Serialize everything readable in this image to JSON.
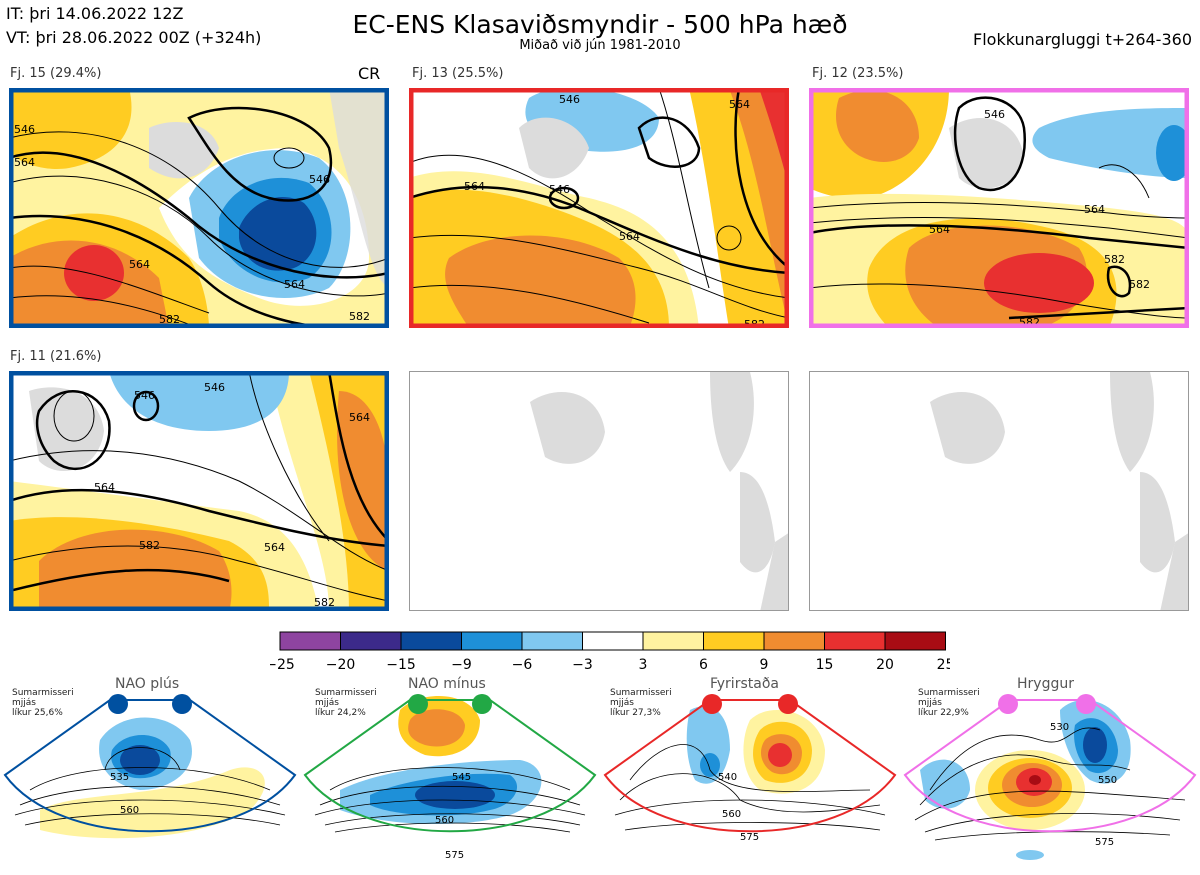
{
  "header": {
    "initial_time": "IT: þri 14.06.2022 12Z",
    "valid_time": "VT: þri 28.06.2022 00Z  (+324h)",
    "title": "EC-ENS Klasaviðsmyndir - 500 hPa hæð",
    "subtitle": "Miðað við jún 1981-2010",
    "window": "Flokkunargluggi t+264-360"
  },
  "panels": [
    {
      "label": "Fj. 15 (29.4%)",
      "border_color": "#0050a0",
      "contours": [
        "546",
        "564",
        "546",
        "564",
        "564",
        "582",
        "582"
      ]
    },
    {
      "label": "Fj. 13 (25.5%)",
      "border_color": "#e82828",
      "contours": [
        "546",
        "564",
        "564",
        "546",
        "564",
        "582"
      ]
    },
    {
      "label": "Fj. 12 (23.5%)",
      "border_color": "#f070e8",
      "contours": [
        "546",
        "564",
        "564",
        "582",
        "582",
        "582"
      ]
    },
    {
      "label": "Fj. 11 (21.6%)",
      "border_color": "#0050a0",
      "contours": [
        "546",
        "546",
        "564",
        "564",
        "564",
        "582",
        "582"
      ]
    }
  ],
  "panel_note": "CR",
  "colorbar": {
    "ticks": [
      "−25",
      "−20",
      "−15",
      "−9",
      "−6",
      "−3",
      "3",
      "6",
      "9",
      "15",
      "20",
      "25"
    ],
    "colors": [
      "#8e44a0",
      "#3c2a8a",
      "#0a4a9c",
      "#1e90d8",
      "#80c8f0",
      "#ffffff",
      "#fff3a0",
      "#ffcc22",
      "#f08c30",
      "#e83030",
      "#a80c14"
    ]
  },
  "regimes": [
    {
      "name": "NAO plús",
      "info": "Sumarmisseri\nmjjás\nlíkur 25,6%",
      "color": "#0050a0",
      "contours": [
        "535",
        "560"
      ]
    },
    {
      "name": "NAO mínus",
      "info": "Sumarmisseri\nmjjás\nlíkur 24,2%",
      "color": "#22a845",
      "contours": [
        "545",
        "560",
        "575"
      ]
    },
    {
      "name": "Fyrirstaða",
      "info": "Sumarmisseri\nmjjás\nlíkur 27,3%",
      "color": "#e82828",
      "contours": [
        "540",
        "560",
        "575"
      ]
    },
    {
      "name": "Hryggur",
      "info": "Sumarmisseri\nmjjás\nlíkur 22,9%",
      "color": "#f070e8",
      "contours": [
        "530",
        "550",
        "575"
      ]
    }
  ]
}
